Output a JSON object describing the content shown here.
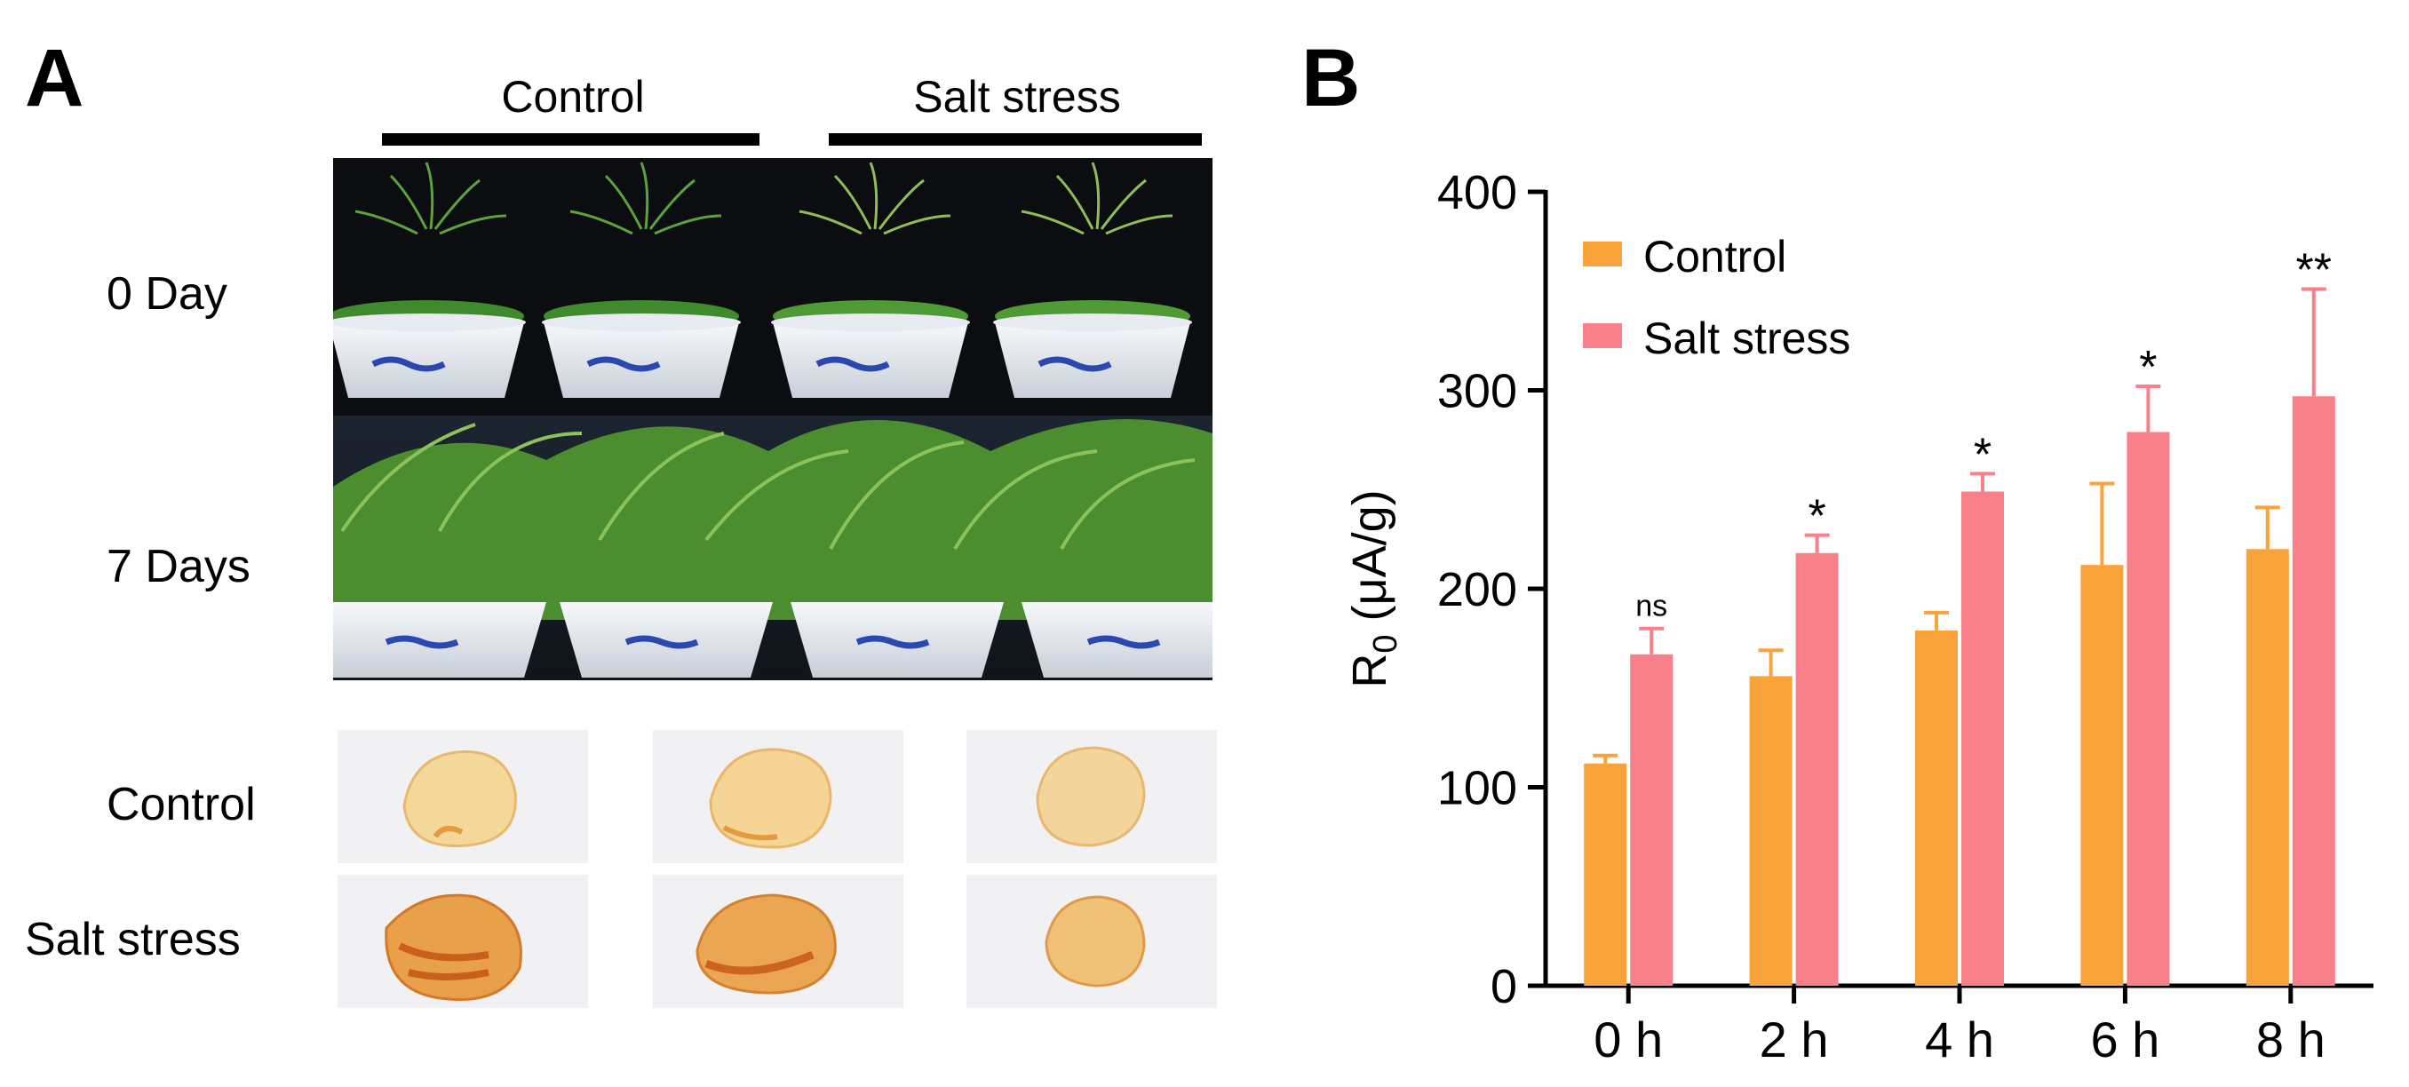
{
  "panelA": {
    "letter": "A",
    "conditions": [
      "Control",
      "Salt stress"
    ],
    "plant_rows": [
      "0 Day",
      "7 Days"
    ],
    "leaf_rows": [
      "Control",
      "Salt stress"
    ]
  },
  "panelB": {
    "letter": "B"
  },
  "chart_data": {
    "type": "bar",
    "categories": [
      "0 h",
      "2 h",
      "4 h",
      "6 h",
      "8 h"
    ],
    "series": [
      {
        "name": "Control",
        "values": [
          112,
          156,
          179,
          212,
          220
        ],
        "errors": [
          4,
          13,
          9,
          41,
          21
        ],
        "color": "#f9a33b"
      },
      {
        "name": "Salt stress",
        "values": [
          167,
          218,
          249,
          279,
          297
        ],
        "errors": [
          13,
          9,
          9,
          23,
          54
        ],
        "color": "#f8808a"
      }
    ],
    "significance": [
      "ns",
      "*",
      "*",
      "*",
      "**"
    ],
    "ylabel_main": "R",
    "ylabel_sub": "0",
    "ylabel_unit": " (μA/g)",
    "ylim": [
      0,
      400
    ],
    "yticks": [
      "0",
      "100",
      "200",
      "300",
      "400"
    ],
    "legend_position": "top-left",
    "grid": false
  }
}
